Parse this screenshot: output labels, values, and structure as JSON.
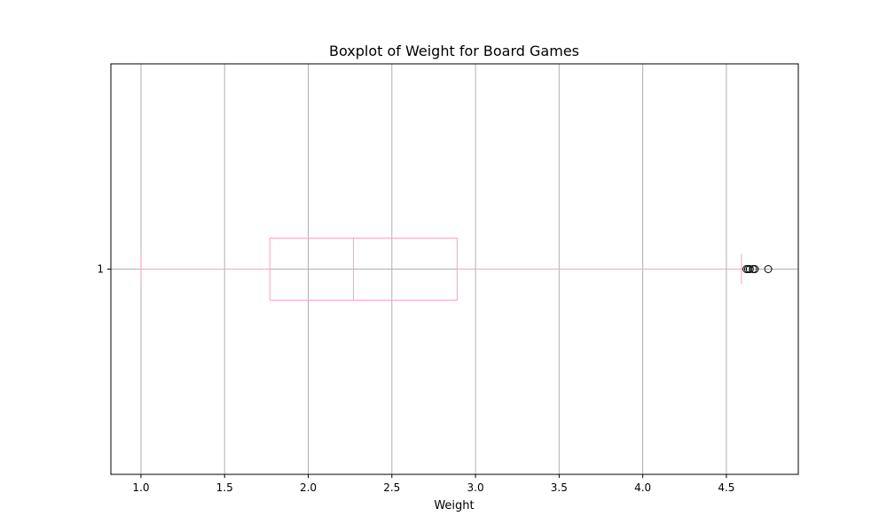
{
  "chart_data": {
    "type": "boxplot",
    "orientation": "horizontal",
    "title": "Boxplot of Weight for Board Games",
    "xlabel": "Weight",
    "ylabel": "",
    "xlim": [
      0.82,
      4.93
    ],
    "x_ticks": [
      1.0,
      1.5,
      2.0,
      2.5,
      3.0,
      3.5,
      4.0,
      4.5
    ],
    "x_tick_labels": [
      "1.0",
      "1.5",
      "2.0",
      "2.5",
      "3.0",
      "3.5",
      "4.0",
      "4.5"
    ],
    "y_tick_labels": [
      "1"
    ],
    "grid": true,
    "box_color": "#ff9ec9",
    "flier_color": "#000000",
    "series": [
      {
        "whisker_low": 1.0,
        "q1": 1.77,
        "median": 2.27,
        "q3": 2.89,
        "whisker_high": 4.59,
        "outliers": [
          4.62,
          4.63,
          4.64,
          4.66,
          4.67,
          4.75
        ]
      }
    ]
  }
}
